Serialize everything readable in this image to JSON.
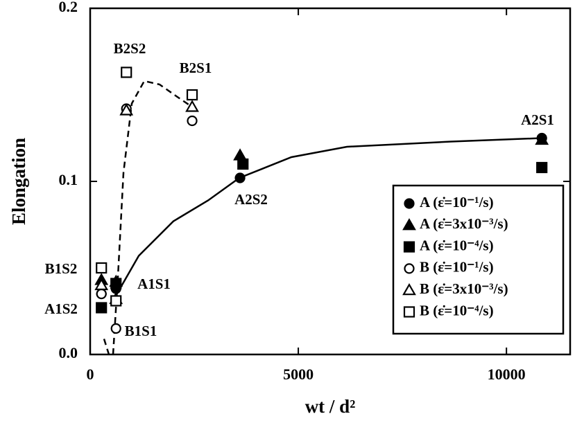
{
  "chart_data": {
    "type": "scatter",
    "x_label": "wt / d²",
    "y_label": "Elongation",
    "xlim": [
      0,
      11530
    ],
    "ylim": [
      0,
      0.2
    ],
    "xticks": [
      0,
      5000,
      10000
    ],
    "yticks": [
      {
        "value": 0,
        "label": "0.0"
      },
      0.1,
      0.2
    ],
    "legend": "lower right",
    "series": [
      {
        "name": "A (ε̇=10⁻¹/s)",
        "marker": "circle",
        "filled": true,
        "color": "#000000",
        "x": [
          270,
          620,
          3600,
          10850
        ],
        "values": [
          0.035,
          0.038,
          0.102,
          0.125
        ]
      },
      {
        "name": "A (ε̇=3x10⁻³/s)",
        "marker": "triangle",
        "filled": true,
        "color": "#000000",
        "x": [
          270,
          620,
          3600,
          10850
        ],
        "values": [
          0.043,
          0.042,
          0.115,
          0.124
        ]
      },
      {
        "name": "A (ε̇=10⁻⁴/s)",
        "marker": "square",
        "filled": true,
        "color": "#000000",
        "x": [
          270,
          620,
          3670,
          10850
        ],
        "values": [
          0.027,
          0.041,
          0.11,
          0.108
        ]
      },
      {
        "name": "B (ε̇=10⁻¹/s)",
        "marker": "circle",
        "filled": false,
        "color": "#000000",
        "x": [
          270,
          620,
          870,
          2450
        ],
        "values": [
          0.035,
          0.015,
          0.142,
          0.135
        ]
      },
      {
        "name": "B (ε̇=3x10⁻³/s)",
        "marker": "triangle",
        "filled": false,
        "color": "#000000",
        "x": [
          270,
          620,
          870,
          2450
        ],
        "values": [
          0.04,
          0.032,
          0.141,
          0.143
        ]
      },
      {
        "name": "B (ε̇=10⁻⁴/s)",
        "marker": "square",
        "filled": false,
        "color": "#000000",
        "x": [
          270,
          620,
          870,
          2450
        ],
        "values": [
          0.05,
          0.031,
          0.163,
          0.15
        ]
      }
    ],
    "curves": [
      {
        "style": "solid",
        "color": "#000000",
        "x": [
          500,
          1167,
          2000,
          2833,
          3583,
          4833,
          6167,
          8667,
          10833
        ],
        "values": [
          0.029,
          0.057,
          0.077,
          0.089,
          0.102,
          0.114,
          0.12,
          0.123,
          0.125
        ]
      },
      {
        "style": "dashed",
        "color": "#000000",
        "x": [
          333,
          450,
          500,
          550,
          667,
          800,
          1000,
          1300,
          1667,
          2083,
          2450
        ],
        "values": [
          0.009,
          0,
          null,
          0,
          0.045,
          0.105,
          0.145,
          0.158,
          0.156,
          0.149,
          0.143
        ]
      }
    ],
    "annotations": [
      "B2S2",
      "B2S1",
      "A2S1",
      "A2S2",
      "B1S2",
      "A1S1",
      "A1S2",
      "B1S1"
    ]
  }
}
